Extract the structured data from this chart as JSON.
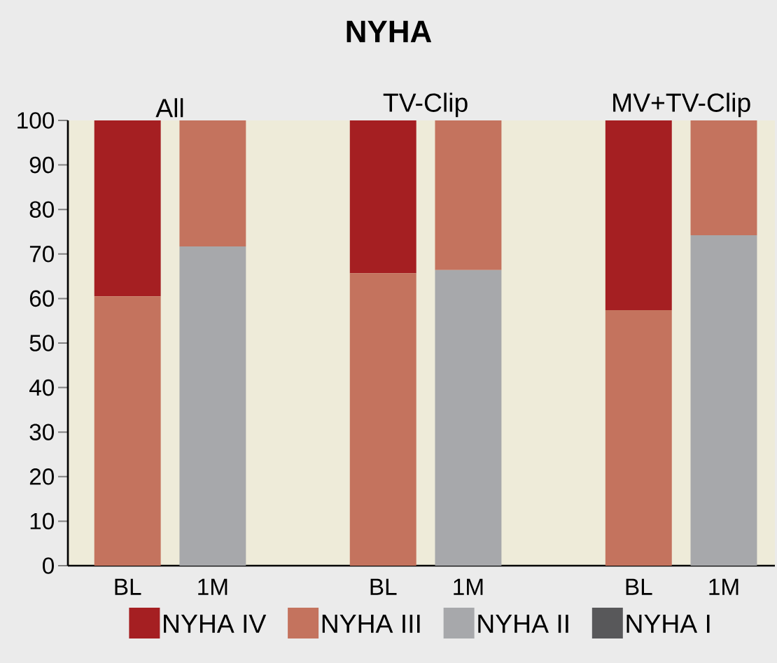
{
  "chart_data": {
    "type": "bar",
    "title": "NYHA",
    "stacked": true,
    "categories": [
      "BL",
      "1M",
      null,
      "BL",
      "1M",
      null,
      "BL",
      "1M"
    ],
    "annotations": [
      "All",
      "TV-Clip",
      "MV+TV-Clip"
    ],
    "series": [
      {
        "name": "NYHA I",
        "color": "#58585a",
        "values": [
          0,
          0,
          null,
          0,
          0,
          null,
          0,
          0
        ]
      },
      {
        "name": "NYHA II",
        "color": "#a7a8ab",
        "values": [
          0,
          71.7,
          null,
          0,
          66.4,
          null,
          0,
          74.2
        ]
      },
      {
        "name": "NYHA III",
        "color": "#c4735e",
        "values": [
          60.5,
          28.3,
          null,
          65.7,
          33.6,
          null,
          57.4,
          25.8
        ]
      },
      {
        "name": "NYHA IV",
        "color": "#a51f22",
        "values": [
          39.5,
          0,
          null,
          34.3,
          0,
          null,
          42.6,
          0
        ]
      }
    ],
    "ylim": [
      0,
      100
    ],
    "yticks": [
      0,
      10,
      20,
      30,
      40,
      50,
      60,
      70,
      80,
      90,
      100
    ],
    "legend": "bottom",
    "grid": false
  }
}
